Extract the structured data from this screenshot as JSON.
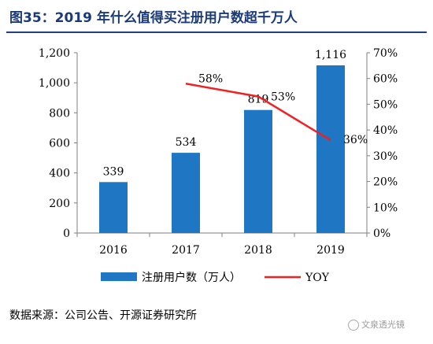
{
  "header": {
    "title": "图35：2019 年什么值得买注册用户数超千万人"
  },
  "chart_data": {
    "type": "bar",
    "categories": [
      "2016",
      "2017",
      "2018",
      "2019"
    ],
    "series": [
      {
        "name": "注册用户数（万人）",
        "type": "bar",
        "axis": "left",
        "values": [
          339,
          534,
          819,
          1116
        ],
        "labels": [
          "339",
          "534",
          "819",
          "1,116"
        ],
        "color": "#1f77c4"
      },
      {
        "name": "YOY",
        "type": "line",
        "axis": "right",
        "values": [
          null,
          58,
          53,
          36
        ],
        "labels": [
          "",
          "58%",
          "53%",
          "36%"
        ],
        "color": "#ee2222"
      }
    ],
    "y_left": {
      "ylim": [
        0,
        1200
      ],
      "ticks": [
        "0",
        "200",
        "400",
        "600",
        "800",
        "1,000",
        "1,200"
      ]
    },
    "y_right": {
      "ylim": [
        0,
        70
      ],
      "ticks": [
        "0%",
        "10%",
        "20%",
        "30%",
        "40%",
        "50%",
        "60%",
        "70%"
      ]
    },
    "grid": false,
    "legend": "bottom"
  },
  "footer": {
    "source": "数据来源：公司公告、开源证券研究所",
    "watermark": "文泉透光镜"
  }
}
